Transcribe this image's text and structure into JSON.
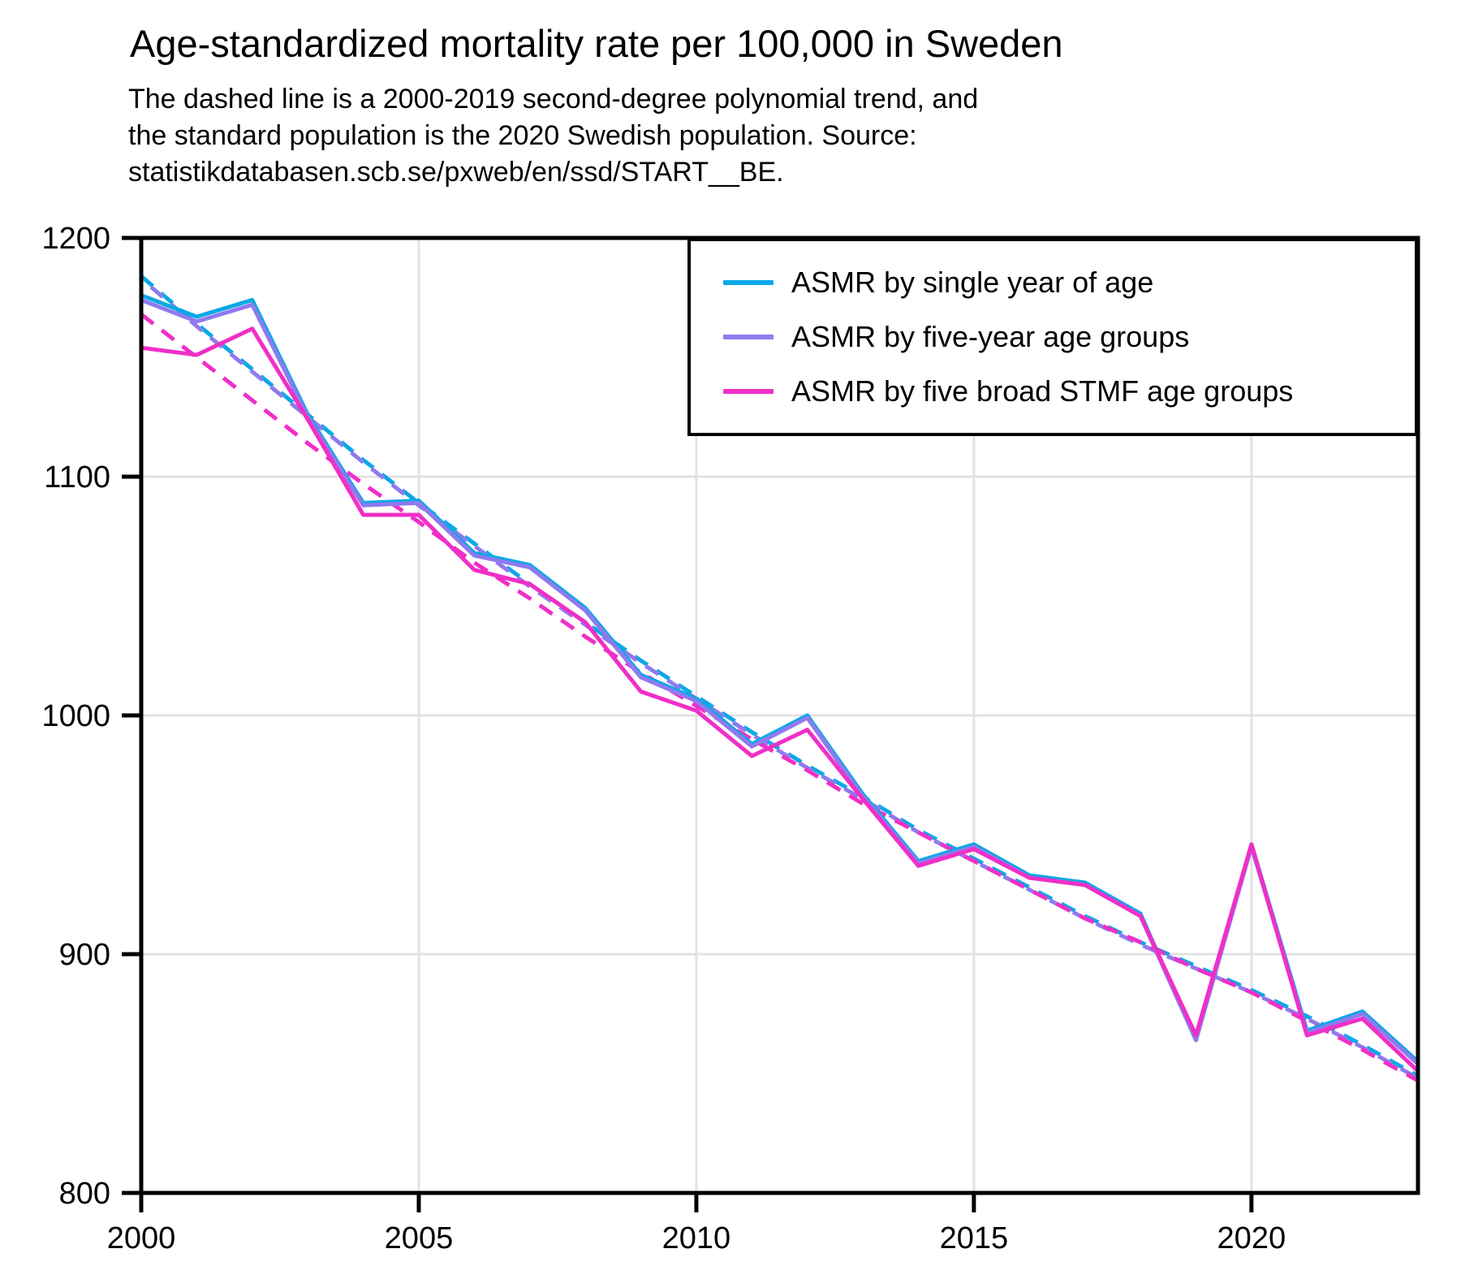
{
  "title": "Age-standardized mortality rate per 100,000 in Sweden",
  "subtitle_lines": [
    "The dashed line is a 2000-2019 second-degree polynomial trend, and",
    "the standard population is the 2020 Swedish population. Source:",
    "statistikdatabasen.scb.se/pxweb/en/ssd/START__BE."
  ],
  "colors": {
    "single_year": "#0AA8E6",
    "five_year": "#8F7AEE",
    "stmf": "#F02FC7",
    "grid": "#E2E2E2",
    "frame": "#000000",
    "text": "#000000",
    "background": "#FFFFFF"
  },
  "legend": {
    "items": [
      {
        "id": "single-year",
        "label": "ASMR by single year of age",
        "color": "#0AA8E6"
      },
      {
        "id": "five-year",
        "label": "ASMR by five-year age groups",
        "color": "#8F7AEE"
      },
      {
        "id": "stmf",
        "label": "ASMR by five broad STMF age groups",
        "color": "#F02FC7"
      }
    ]
  },
  "chart_data": {
    "type": "line",
    "title": "Age-standardized mortality rate per 100,000 in Sweden",
    "xlabel": "",
    "ylabel": "",
    "xlim": [
      2000,
      2023
    ],
    "ylim": [
      800,
      1200
    ],
    "grid": {
      "vertical": [
        2005,
        2010,
        2015,
        2020
      ],
      "horizontal": [
        900,
        1000,
        1100
      ]
    },
    "x_ticks": [
      {
        "label": "2000",
        "value": 2000
      },
      {
        "label": "2005",
        "value": 2005
      },
      {
        "label": "2010",
        "value": 2010
      },
      {
        "label": "2015",
        "value": 2015
      },
      {
        "label": "2020",
        "value": 2020
      }
    ],
    "y_ticks": [
      {
        "label": "800",
        "value": 800
      },
      {
        "label": "900",
        "value": 900
      },
      {
        "label": "1000",
        "value": 1000
      },
      {
        "label": "1100",
        "value": 1100
      },
      {
        "label": "1200",
        "value": 1200
      }
    ],
    "x": [
      2000,
      2001,
      2002,
      2003,
      2004,
      2005,
      2006,
      2007,
      2008,
      2009,
      2010,
      2011,
      2012,
      2013,
      2014,
      2015,
      2016,
      2017,
      2018,
      2019,
      2020,
      2021,
      2022,
      2023
    ],
    "series": [
      {
        "id": "asmr-single-year",
        "name": "ASMR by single year of age",
        "style": "solid",
        "color": "#0AA8E6",
        "values": [
          1176,
          1167,
          1174,
          1126,
          1089,
          1090,
          1068,
          1063,
          1045,
          1017,
          1007,
          988,
          1000,
          967,
          939,
          946,
          933,
          930,
          917,
          864,
          946,
          868,
          876,
          855
        ]
      },
      {
        "id": "asmr-five-year",
        "name": "ASMR by five-year age groups",
        "style": "solid",
        "color": "#8F7AEE",
        "values": [
          1174,
          1165,
          1172,
          1125,
          1088,
          1089,
          1067,
          1062,
          1044,
          1016,
          1006,
          987,
          999,
          966,
          938,
          945,
          932,
          929,
          916,
          864,
          945,
          867,
          875,
          854
        ]
      },
      {
        "id": "asmr-stmf",
        "name": "ASMR by five broad STMF age groups",
        "style": "solid",
        "color": "#F02FC7",
        "values": [
          1154,
          1151,
          1162,
          1124,
          1084,
          1084,
          1061,
          1055,
          1039,
          1010,
          1002,
          983,
          994,
          965,
          937,
          944,
          932,
          929,
          916,
          866,
          946,
          866,
          873,
          851
        ]
      },
      {
        "id": "trend-single-year",
        "name": "2000-2019 polynomial trend (single year of age)",
        "style": "dashed",
        "color": "#0AA8E6",
        "values": [
          1184,
          1164,
          1145,
          1126,
          1107,
          1089,
          1072,
          1055,
          1039,
          1023,
          1008,
          993,
          979,
          966,
          952,
          940,
          928,
          916,
          905,
          895,
          885,
          874,
          862,
          849
        ]
      },
      {
        "id": "trend-five-year",
        "name": "2000-2019 polynomial trend (five-year age groups)",
        "style": "dashed",
        "color": "#8F7AEE",
        "values": [
          1183,
          1163,
          1144,
          1125,
          1106,
          1088,
          1071,
          1054,
          1038,
          1022,
          1007,
          992,
          978,
          965,
          951,
          939,
          927,
          915,
          904,
          894,
          884,
          873,
          861,
          848
        ]
      },
      {
        "id": "trend-stmf",
        "name": "2000-2019 polynomial trend (five broad STMF age groups)",
        "style": "dashed",
        "color": "#F02FC7",
        "values": [
          1168,
          1150,
          1132,
          1114,
          1097,
          1081,
          1064,
          1049,
          1033,
          1018,
          1004,
          990,
          977,
          963,
          951,
          939,
          927,
          915,
          905,
          894,
          884,
          872,
          860,
          847
        ]
      }
    ]
  }
}
